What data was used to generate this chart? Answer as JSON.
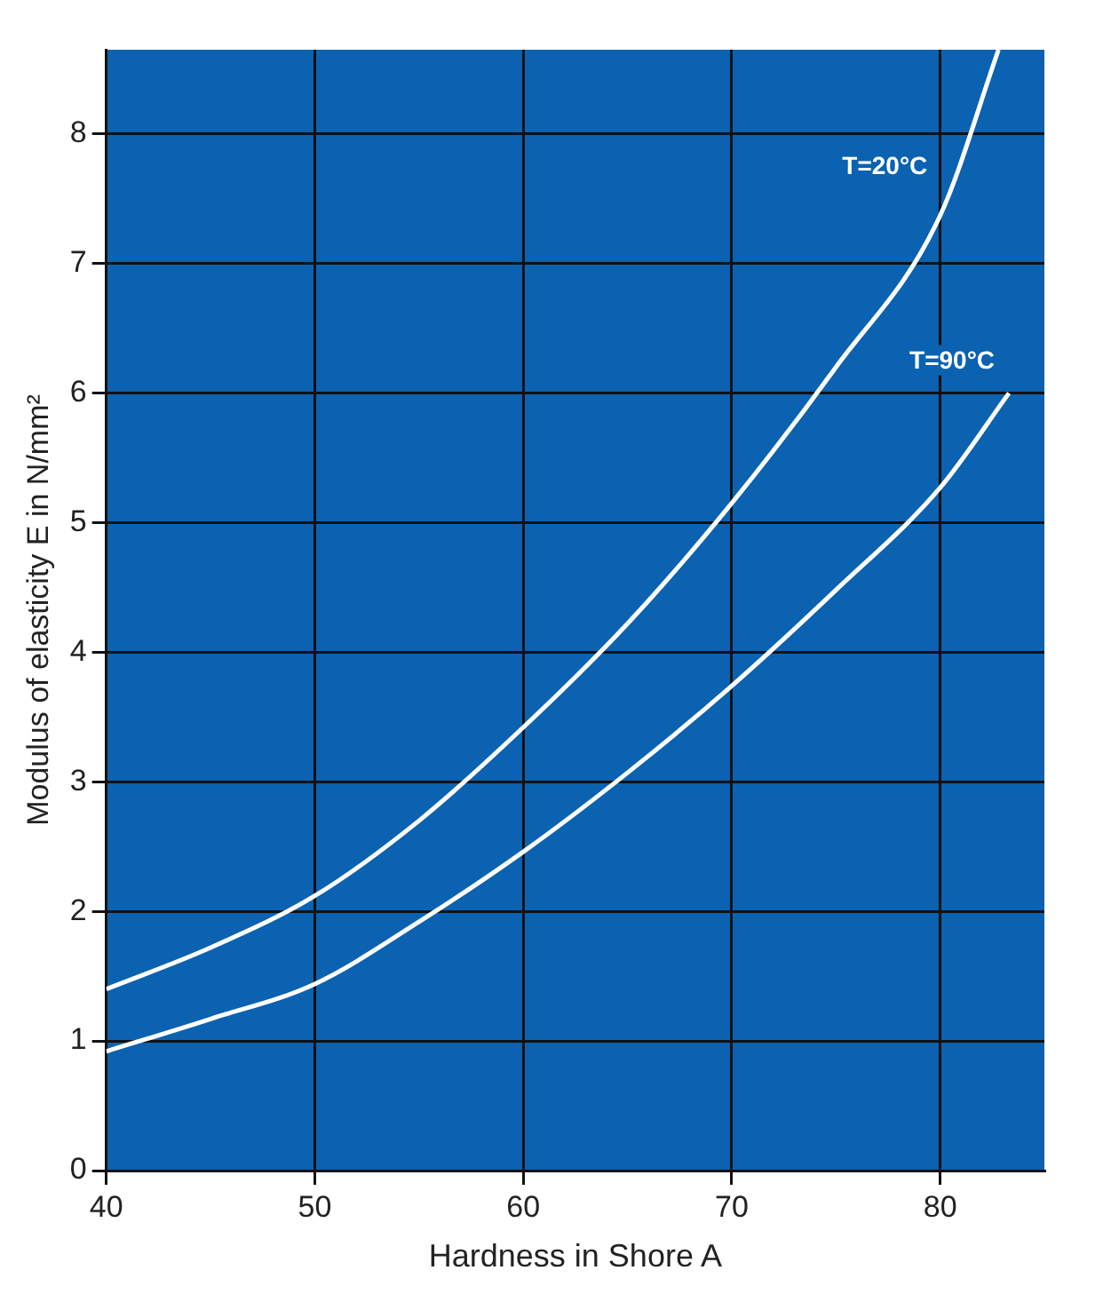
{
  "chart_data": {
    "type": "line",
    "xlabel": "Hardness in Shore A",
    "ylabel": "Modulus of elasticity E in N/mm²",
    "xlim": [
      40,
      85
    ],
    "ylim": [
      0,
      8.65
    ],
    "xticks": [
      40,
      50,
      60,
      70,
      80
    ],
    "yticks": [
      0,
      1,
      2,
      3,
      4,
      5,
      6,
      7,
      8
    ],
    "grid": true,
    "legend": false,
    "marker": "none",
    "line_style": "solid",
    "series": [
      {
        "name": "T=20°C",
        "color": "#ffffff",
        "x": [
          40,
          45,
          50,
          55,
          60,
          65,
          70,
          75,
          80,
          82.8
        ],
        "values": [
          1.4,
          1.72,
          2.12,
          2.7,
          3.42,
          4.22,
          5.15,
          6.2,
          7.37,
          8.65
        ]
      },
      {
        "name": "T=90°C",
        "color": "#ffffff",
        "x": [
          40,
          45,
          50,
          55,
          60,
          65,
          70,
          75,
          80,
          83.3
        ],
        "values": [
          0.92,
          1.17,
          1.44,
          1.92,
          2.46,
          3.07,
          3.74,
          4.48,
          5.27,
          6.0
        ]
      }
    ]
  }
}
